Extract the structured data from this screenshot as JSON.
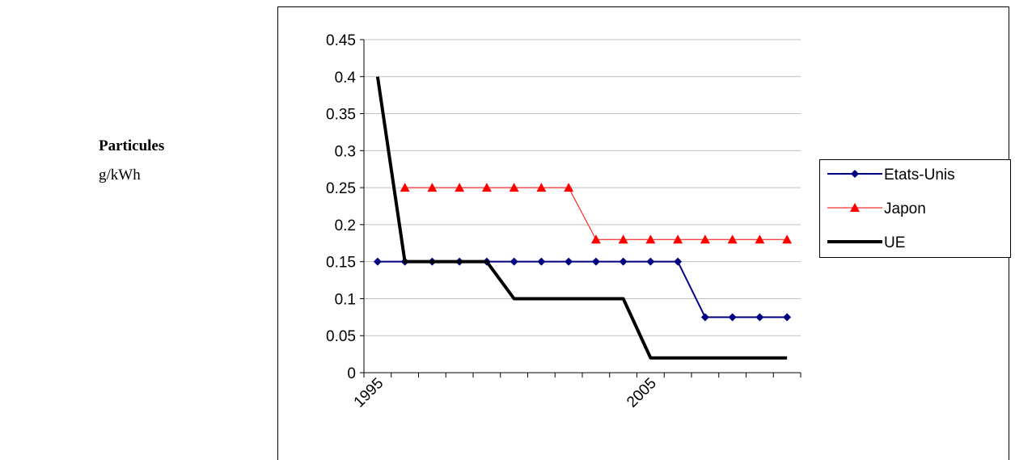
{
  "chart_data": {
    "type": "line",
    "y_label": "Particules",
    "y_unit": "g/kWh",
    "categories": [
      "1995",
      null,
      null,
      null,
      null,
      null,
      null,
      null,
      null,
      null,
      "2005",
      null,
      null,
      null,
      null,
      null
    ],
    "series": [
      {
        "name": "Etats-Unis",
        "color": "#000080",
        "marker": "diamond",
        "line_width": 2,
        "values": [
          0.15,
          0.15,
          0.15,
          0.15,
          0.15,
          0.15,
          0.15,
          0.15,
          0.15,
          0.15,
          0.15,
          0.15,
          0.075,
          0.075,
          0.075,
          0.075
        ]
      },
      {
        "name": "Japon",
        "color": "#ff0000",
        "marker": "triangle",
        "line_width": 1,
        "values": [
          null,
          0.25,
          0.25,
          0.25,
          0.25,
          0.25,
          0.25,
          0.25,
          0.18,
          0.18,
          0.18,
          0.18,
          0.18,
          0.18,
          0.18,
          0.18
        ]
      },
      {
        "name": "UE",
        "color": "#000000",
        "marker": "none",
        "line_width": 4,
        "values": [
          0.4,
          0.15,
          0.15,
          0.15,
          0.15,
          0.1,
          0.1,
          0.1,
          0.1,
          0.1,
          0.02,
          0.02,
          0.02,
          0.02,
          0.02,
          0.02
        ]
      }
    ],
    "ylim": [
      0,
      0.45
    ],
    "yticks": [
      0,
      0.05,
      0.1,
      0.15,
      0.2,
      0.25,
      0.3,
      0.35,
      0.4,
      0.45
    ],
    "grid": true,
    "legend": "right"
  }
}
